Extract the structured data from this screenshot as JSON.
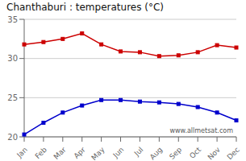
{
  "chart_data": {
    "type": "line",
    "title": "Chanthaburi : temperatures (°C)",
    "categories": [
      "Jan",
      "Feb",
      "Mar",
      "Apr",
      "May",
      "Jun",
      "Jul",
      "Aug",
      "Sep",
      "Oct",
      "Nov",
      "Dec"
    ],
    "series": [
      {
        "color": "#cc0000",
        "marker": "square",
        "line_style": "solid",
        "values": [
          31.8,
          32.1,
          32.5,
          33.2,
          31.8,
          30.9,
          30.8,
          30.3,
          30.4,
          30.8,
          31.7,
          31.4
        ]
      },
      {
        "color": "#0000cc",
        "marker": "square",
        "line_style": "solid",
        "values": [
          20.3,
          21.8,
          23.1,
          24.0,
          24.7,
          24.7,
          24.5,
          24.4,
          24.2,
          23.8,
          23.1,
          22.1
        ]
      }
    ],
    "ylim": [
      20,
      35
    ],
    "yticks": [
      20,
      25,
      30,
      35
    ],
    "grid": true,
    "annotations": [
      "www.allmetsat.com"
    ]
  }
}
